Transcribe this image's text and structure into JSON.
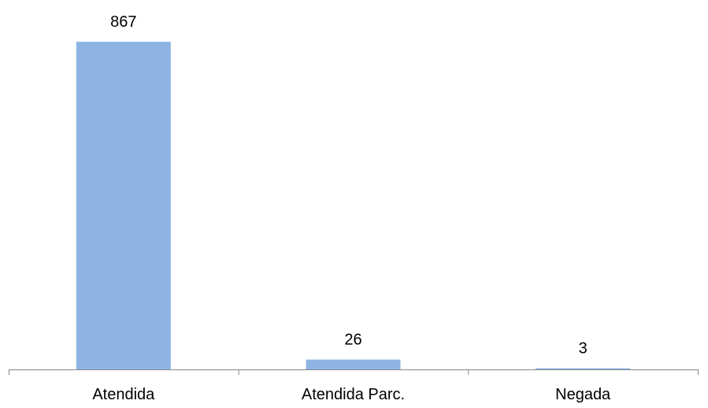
{
  "chart_data": {
    "type": "bar",
    "title": "",
    "xlabel": "",
    "ylabel": "",
    "categories": [
      "Atendida",
      "Atendida Parc.",
      "Negada"
    ],
    "values": [
      867,
      26,
      3
    ],
    "data_labels": [
      "867",
      "26",
      "3"
    ],
    "ylim": [
      0,
      867
    ],
    "bar_color": "#8EB4E3",
    "axis_color": "#868686",
    "grid": false,
    "legend": "none"
  }
}
